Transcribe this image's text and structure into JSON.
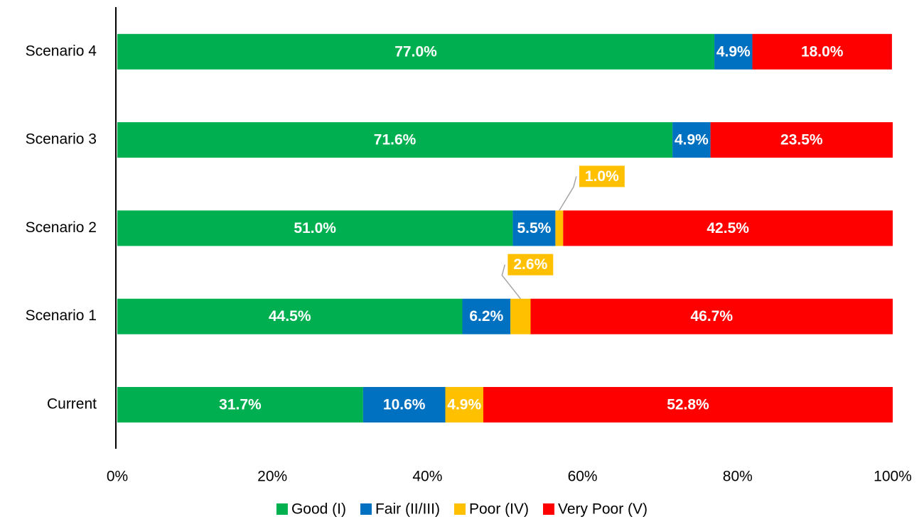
{
  "chart_data": {
    "type": "stacked-barh",
    "categories": [
      "Current",
      "Scenario 1",
      "Scenario 2",
      "Scenario 3",
      "Scenario 4"
    ],
    "series": [
      {
        "name": "Good (I)",
        "color": "#00b050",
        "values": [
          31.7,
          44.5,
          51.0,
          71.6,
          77.0
        ],
        "value_labels": [
          "31.7%",
          "44.5%",
          "51.0%",
          "71.6%",
          "77.0%"
        ]
      },
      {
        "name": "Fair (II/III)",
        "color": "#0070c0",
        "values": [
          10.6,
          6.2,
          5.5,
          4.9,
          4.9
        ],
        "value_labels": [
          "10.6%",
          "6.2%",
          "5.5%",
          "4.9%",
          "4.9%"
        ]
      },
      {
        "name": "Poor (IV)",
        "color": "#ffc000",
        "values": [
          4.9,
          2.6,
          1.0,
          null,
          null
        ],
        "value_labels": [
          "4.9%",
          "2.6%",
          "1.0%",
          null,
          null
        ]
      },
      {
        "name": "Very Poor (V)",
        "color": "#ff0000",
        "values": [
          52.8,
          46.7,
          42.5,
          23.5,
          18.0
        ],
        "value_labels": [
          "52.8%",
          "46.7%",
          "42.5%",
          "23.5%",
          "18.0%"
        ]
      }
    ],
    "xlim": [
      0,
      100
    ],
    "xticks": [
      {
        "value": 0,
        "label": "0%"
      },
      {
        "value": 20,
        "label": "20%"
      },
      {
        "value": 40,
        "label": "40%"
      },
      {
        "value": 60,
        "label": "60%"
      },
      {
        "value": 80,
        "label": "80%"
      },
      {
        "value": 100,
        "label": "100%"
      }
    ],
    "legend": "bottom"
  }
}
